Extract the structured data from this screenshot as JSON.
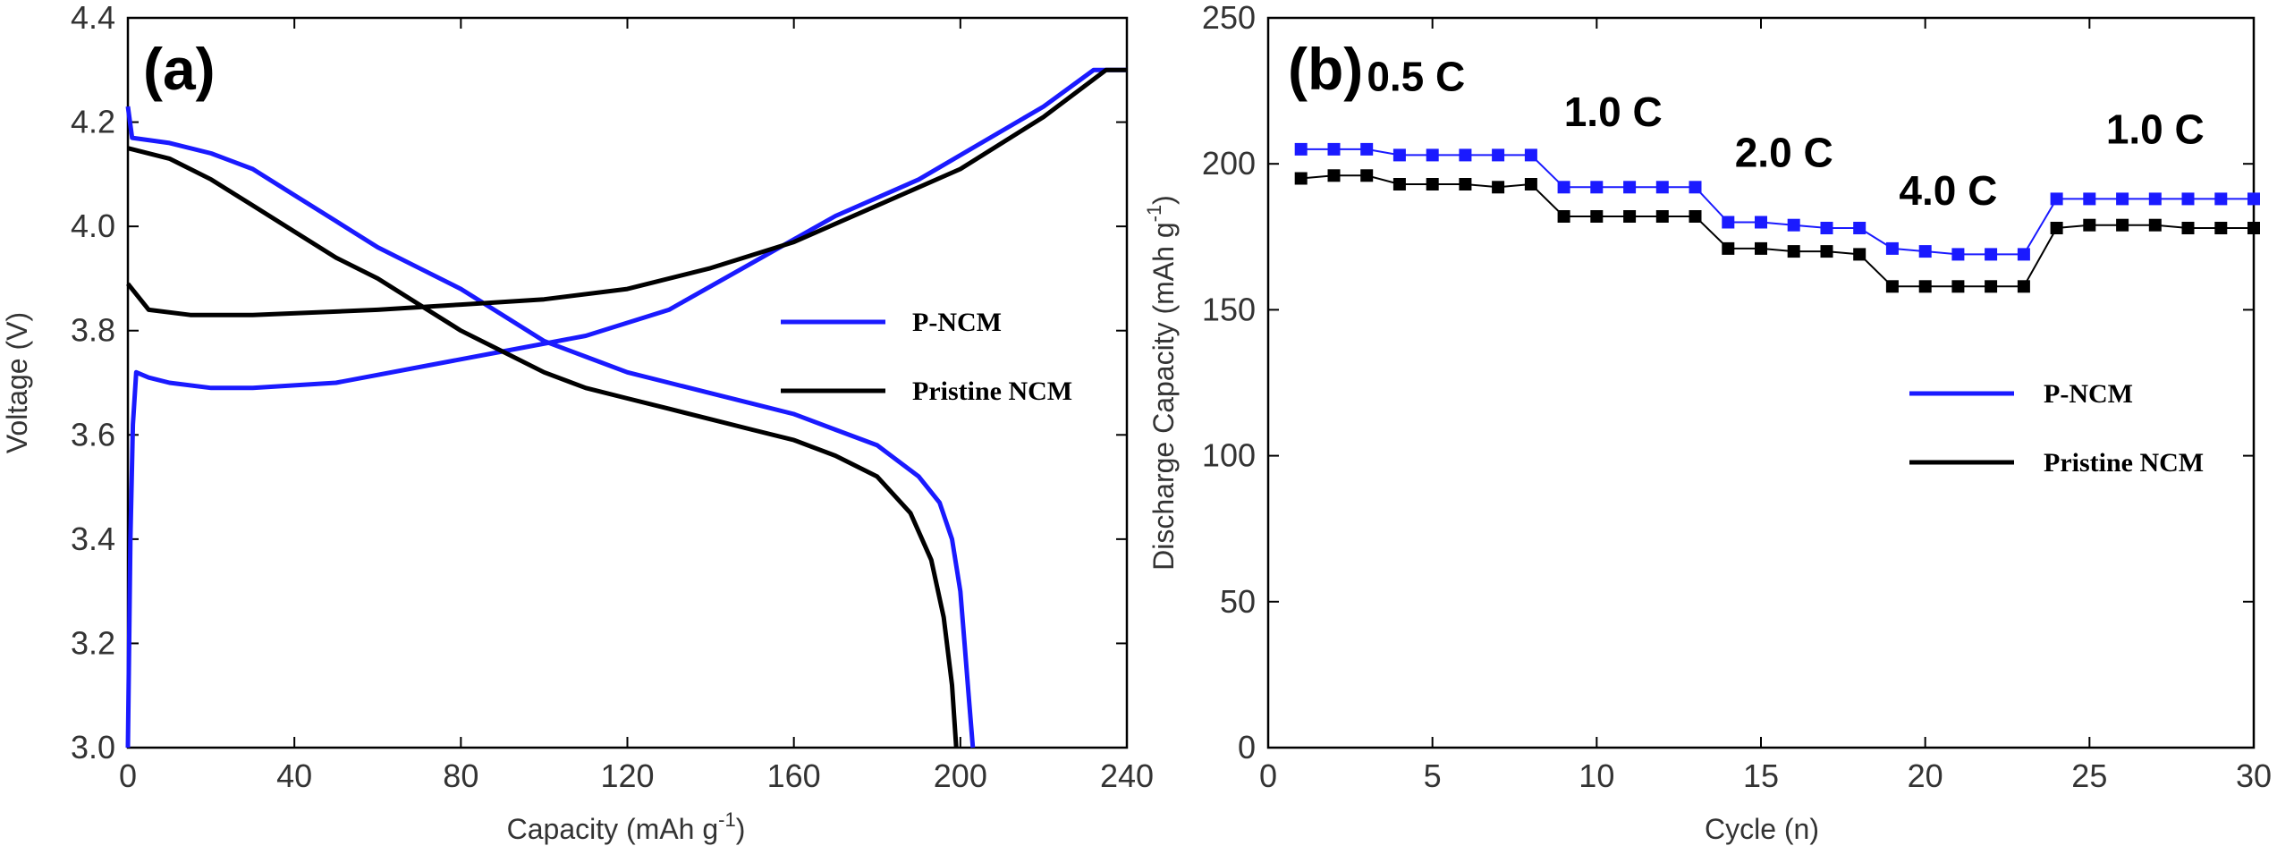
{
  "chart_data": [
    {
      "type": "line",
      "panel_label": "(a)",
      "xlabel": "Capacity (mAh g",
      "xlabel_sup": "-1",
      "xlabel_end": ")",
      "ylabel": "Voltage (V)",
      "xlim": [
        0,
        240
      ],
      "ylim": [
        3.0,
        4.4
      ],
      "xticks": [
        "0",
        "40",
        "80",
        "120",
        "160",
        "200",
        "240"
      ],
      "yticks": [
        "3.0",
        "3.2",
        "3.4",
        "3.6",
        "3.8",
        "4.0",
        "4.2",
        "4.4"
      ],
      "series": [
        {
          "name": "P-NCM",
          "color": "#1a1aff",
          "segments": [
            [
              [
                0,
                3.0
              ],
              [
                0.6,
                3.4
              ],
              [
                1.2,
                3.62
              ],
              [
                2,
                3.72
              ],
              [
                5,
                3.71
              ],
              [
                10,
                3.7
              ],
              [
                20,
                3.69
              ],
              [
                30,
                3.69
              ],
              [
                50,
                3.7
              ],
              [
                70,
                3.73
              ],
              [
                90,
                3.76
              ],
              [
                110,
                3.79
              ],
              [
                130,
                3.84
              ],
              [
                150,
                3.93
              ],
              [
                170,
                4.02
              ],
              [
                190,
                4.09
              ],
              [
                205,
                4.16
              ],
              [
                220,
                4.23
              ],
              [
                232,
                4.3
              ],
              [
                240,
                4.3
              ]
            ],
            [
              [
                0,
                4.23
              ],
              [
                1,
                4.17
              ],
              [
                10,
                4.16
              ],
              [
                20,
                4.14
              ],
              [
                30,
                4.11
              ],
              [
                40,
                4.06
              ],
              [
                50,
                4.01
              ],
              [
                60,
                3.96
              ],
              [
                70,
                3.92
              ],
              [
                80,
                3.88
              ],
              [
                90,
                3.83
              ],
              [
                100,
                3.78
              ],
              [
                110,
                3.75
              ],
              [
                120,
                3.72
              ],
              [
                130,
                3.7
              ],
              [
                140,
                3.68
              ],
              [
                150,
                3.66
              ],
              [
                160,
                3.64
              ],
              [
                170,
                3.61
              ],
              [
                180,
                3.58
              ],
              [
                190,
                3.52
              ],
              [
                195,
                3.47
              ],
              [
                198,
                3.4
              ],
              [
                200,
                3.3
              ],
              [
                201,
                3.2
              ],
              [
                202,
                3.1
              ],
              [
                203,
                3.0
              ]
            ]
          ]
        },
        {
          "name": "Pristine NCM",
          "color": "#000000",
          "segments": [
            [
              [
                0,
                3.89
              ],
              [
                2,
                3.87
              ],
              [
                5,
                3.84
              ],
              [
                15,
                3.83
              ],
              [
                30,
                3.83
              ],
              [
                60,
                3.84
              ],
              [
                80,
                3.85
              ],
              [
                100,
                3.86
              ],
              [
                120,
                3.88
              ],
              [
                140,
                3.92
              ],
              [
                160,
                3.97
              ],
              [
                180,
                4.04
              ],
              [
                200,
                4.11
              ],
              [
                220,
                4.21
              ],
              [
                235,
                4.3
              ],
              [
                240,
                4.3
              ]
            ],
            [
              [
                0,
                4.15
              ],
              [
                10,
                4.13
              ],
              [
                20,
                4.09
              ],
              [
                30,
                4.04
              ],
              [
                40,
                3.99
              ],
              [
                50,
                3.94
              ],
              [
                60,
                3.9
              ],
              [
                70,
                3.85
              ],
              [
                80,
                3.8
              ],
              [
                90,
                3.76
              ],
              [
                100,
                3.72
              ],
              [
                110,
                3.69
              ],
              [
                120,
                3.67
              ],
              [
                130,
                3.65
              ],
              [
                140,
                3.63
              ],
              [
                150,
                3.61
              ],
              [
                160,
                3.59
              ],
              [
                170,
                3.56
              ],
              [
                180,
                3.52
              ],
              [
                188,
                3.45
              ],
              [
                193,
                3.36
              ],
              [
                196,
                3.25
              ],
              [
                198,
                3.12
              ],
              [
                199,
                3.0
              ]
            ]
          ]
        }
      ],
      "legend": {
        "position": "center-right",
        "entries": [
          "P-NCM",
          "Pristine NCM"
        ]
      }
    },
    {
      "type": "line",
      "panel_label": "(b)",
      "xlabel": "Cycle (n)",
      "ylabel": "Discharge Capacity (mAh g",
      "ylabel_sup": "-1",
      "ylabel_end": ")",
      "xlim": [
        0,
        30
      ],
      "ylim": [
        0,
        250
      ],
      "xticks": [
        "0",
        "5",
        "10",
        "15",
        "20",
        "25",
        "30"
      ],
      "yticks": [
        "0",
        "50",
        "100",
        "150",
        "200",
        "250"
      ],
      "x": [
        1,
        2,
        3,
        4,
        5,
        6,
        7,
        8,
        9,
        10,
        11,
        12,
        13,
        14,
        15,
        16,
        17,
        18,
        19,
        20,
        21,
        22,
        23,
        24,
        25,
        26,
        27,
        28,
        29,
        30
      ],
      "series": [
        {
          "name": "P-NCM",
          "color": "#1a1aff",
          "values": [
            205,
            205,
            205,
            203,
            203,
            203,
            203,
            203,
            192,
            192,
            192,
            192,
            192,
            180,
            180,
            179,
            178,
            178,
            171,
            170,
            169,
            169,
            169,
            188,
            188,
            188,
            188,
            188,
            188,
            188
          ]
        },
        {
          "name": "Pristine NCM",
          "color": "#000000",
          "values": [
            195,
            196,
            196,
            193,
            193,
            193,
            192,
            193,
            182,
            182,
            182,
            182,
            182,
            171,
            171,
            170,
            170,
            169,
            158,
            158,
            158,
            158,
            158,
            178,
            179,
            179,
            179,
            178,
            178,
            178
          ]
        }
      ],
      "rate_labels": [
        {
          "text": "0.5 C",
          "x": 4.5,
          "y": 225
        },
        {
          "text": "1.0 C",
          "x": 10.5,
          "y": 213
        },
        {
          "text": "2.0 C",
          "x": 15.7,
          "y": 199
        },
        {
          "text": "4.0 C",
          "x": 20.7,
          "y": 186
        },
        {
          "text": "1.0 C",
          "x": 27,
          "y": 207
        }
      ],
      "legend": {
        "position": "lower-right",
        "entries": [
          "P-NCM",
          "Pristine NCM"
        ]
      }
    }
  ]
}
